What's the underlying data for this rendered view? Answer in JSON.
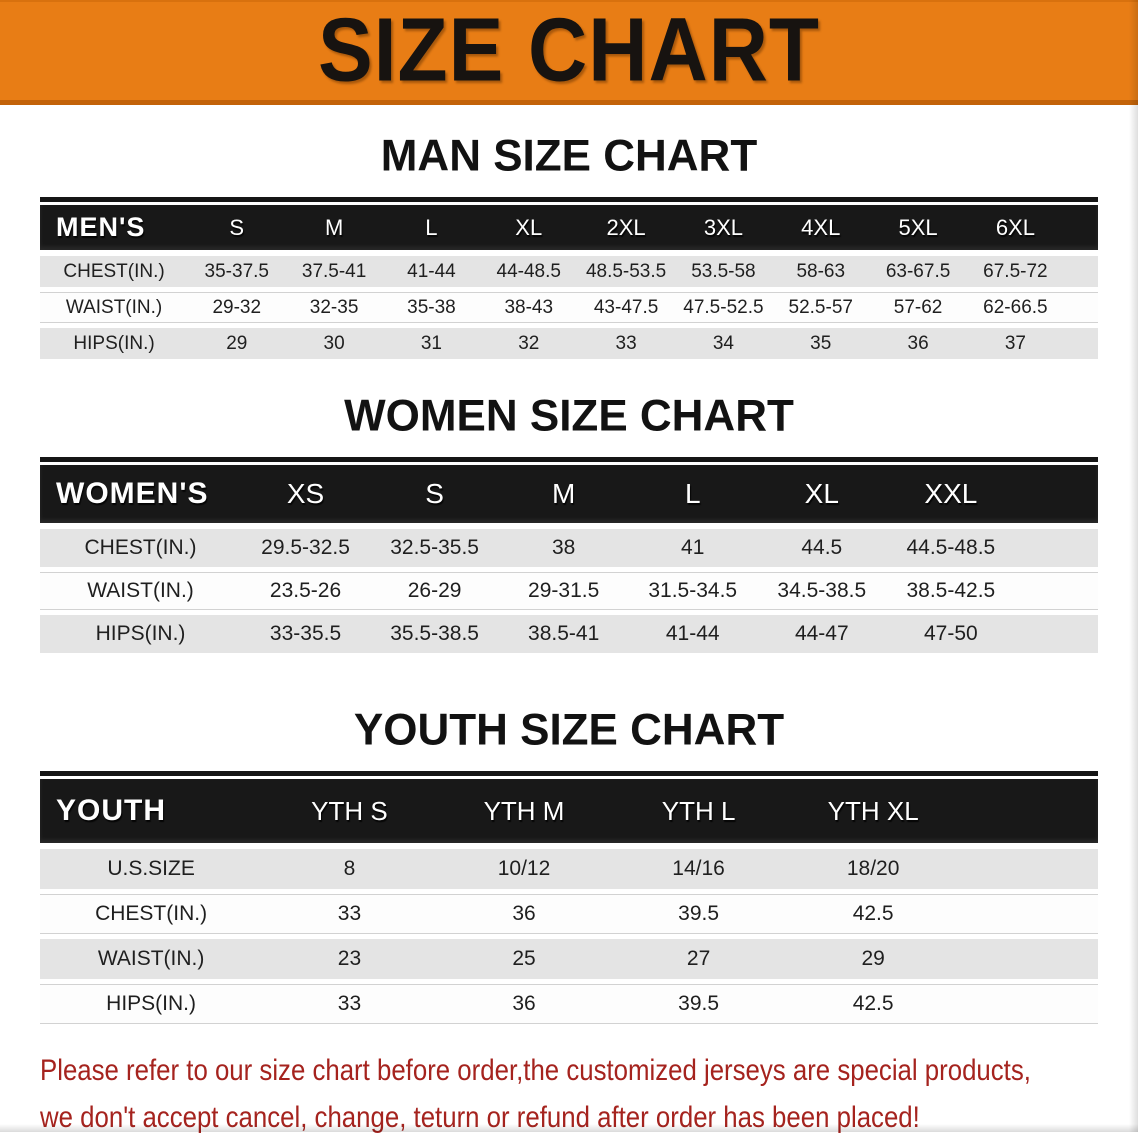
{
  "banner": {
    "title": "SIZE CHART",
    "bg_color": "#e87d15",
    "text_color": "#171310"
  },
  "sections": [
    {
      "id": "men",
      "heading": "MAN SIZE CHART",
      "group_label": "MEN'S",
      "sizes": [
        "S",
        "M",
        "L",
        "XL",
        "2XL",
        "3XL",
        "4XL",
        "5XL",
        "6XL"
      ],
      "rows": [
        {
          "label": "CHEST(IN.)",
          "values": [
            "35-37.5",
            "37.5-41",
            "41-44",
            "44-48.5",
            "48.5-53.5",
            "53.5-58",
            "58-63",
            "63-67.5",
            "67.5-72"
          ]
        },
        {
          "label": "WAIST(IN.)",
          "values": [
            "29-32",
            "32-35",
            "35-38",
            "38-43",
            "43-47.5",
            "47.5-52.5",
            "52.5-57",
            "57-62",
            "62-66.5"
          ]
        },
        {
          "label": "HIPS(IN.)",
          "values": [
            "29",
            "30",
            "31",
            "32",
            "33",
            "34",
            "35",
            "36",
            "37"
          ]
        }
      ]
    },
    {
      "id": "women",
      "heading": "WOMEN SIZE CHART",
      "group_label": "WOMEN'S",
      "sizes": [
        "XS",
        "S",
        "M",
        "L",
        "XL",
        "XXL"
      ],
      "rows": [
        {
          "label": "CHEST(IN.)",
          "values": [
            "29.5-32.5",
            "32.5-35.5",
            "38",
            "41",
            "44.5",
            "44.5-48.5"
          ]
        },
        {
          "label": "WAIST(IN.)",
          "values": [
            "23.5-26",
            "26-29",
            "29-31.5",
            "31.5-34.5",
            "34.5-38.5",
            "38.5-42.5"
          ]
        },
        {
          "label": "HIPS(IN.)",
          "values": [
            "33-35.5",
            "35.5-38.5",
            "38.5-41",
            "41-44",
            "44-47",
            "47-50"
          ]
        }
      ]
    },
    {
      "id": "youth",
      "heading": "YOUTH SIZE CHART",
      "group_label": "YOUTH",
      "sizes": [
        "YTH S",
        "YTH M",
        "YTH L",
        "YTH XL"
      ],
      "rows": [
        {
          "label": "U.S.SIZE",
          "values": [
            "8",
            "10/12",
            "14/16",
            "18/20"
          ]
        },
        {
          "label": "CHEST(IN.)",
          "values": [
            "33",
            "36",
            "39.5",
            "42.5"
          ]
        },
        {
          "label": "WAIST(IN.)",
          "values": [
            "23",
            "25",
            "27",
            "29"
          ]
        },
        {
          "label": "HIPS(IN.)",
          "values": [
            "33",
            "36",
            "39.5",
            "42.5"
          ]
        }
      ]
    }
  ],
  "disclaimer": {
    "line1": "Please refer to our size chart before order,the customized jerseys are special products,",
    "line2": "we don't accept cancel, change, teturn or refund after order has been placed!",
    "color": "#a5231e"
  },
  "colors": {
    "header_bar": "#181818",
    "row_gray": "#e4e4e4",
    "row_white": "#fdfdfd"
  }
}
